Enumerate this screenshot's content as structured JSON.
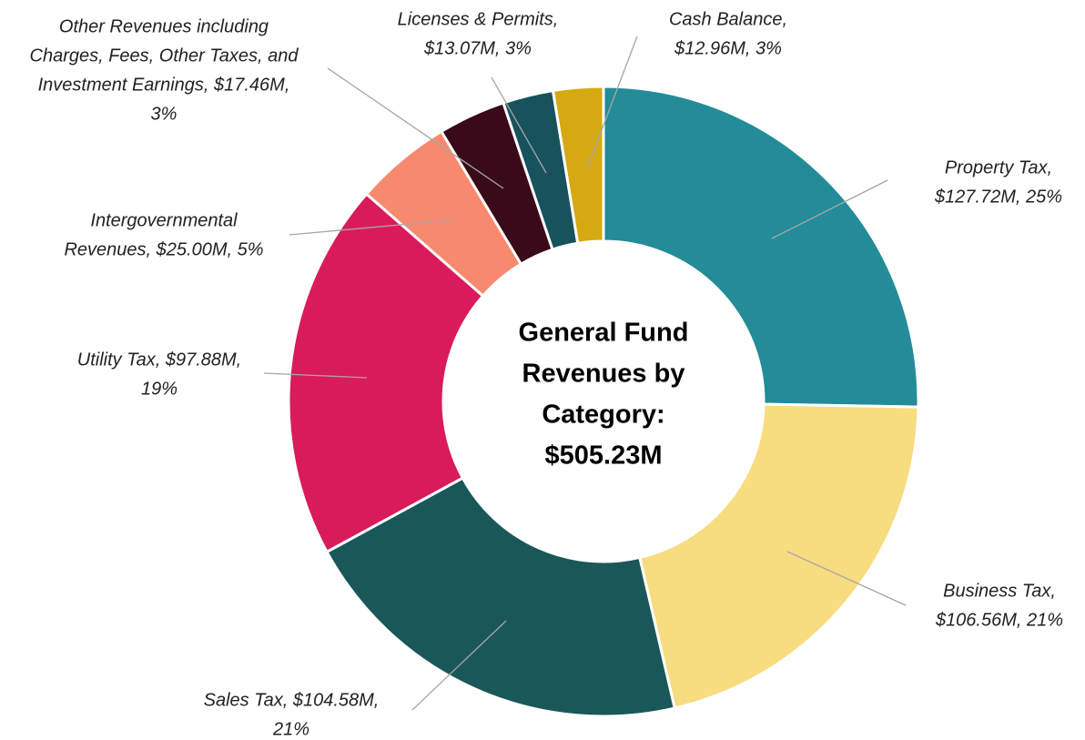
{
  "chart_data": {
    "type": "donut",
    "title": [
      "General Fund",
      "Revenues by",
      "Category:",
      "$505.23M"
    ],
    "values": [
      127.72,
      106.56,
      104.58,
      97.88,
      25.0,
      17.46,
      13.07,
      12.96
    ],
    "value_labels": [
      [
        "Property Tax,",
        "$127.72M, 25%"
      ],
      [
        "Business Tax,",
        "$106.56M, 21%"
      ],
      [
        "Sales Tax, $104.58M,",
        "21%"
      ],
      [
        "Utility Tax, $97.88M,",
        "19%"
      ],
      [
        "Intergovernmental",
        "Revenues, $25.00M, 5%"
      ],
      [
        "Other Revenues including",
        "Charges, Fees, Other Taxes, and",
        "Investment Earnings, $17.46M,",
        "3%"
      ],
      [
        "Licenses & Permits,",
        "$13.07M, 3%"
      ],
      [
        "Cash Balance,",
        "$12.96M, 3%"
      ]
    ],
    "colors": [
      "#238c98",
      "#f7dc80",
      "#1a5759",
      "#d91b5b",
      "#f78a6e",
      "#390a1a",
      "#17525d",
      "#d4a912"
    ]
  }
}
